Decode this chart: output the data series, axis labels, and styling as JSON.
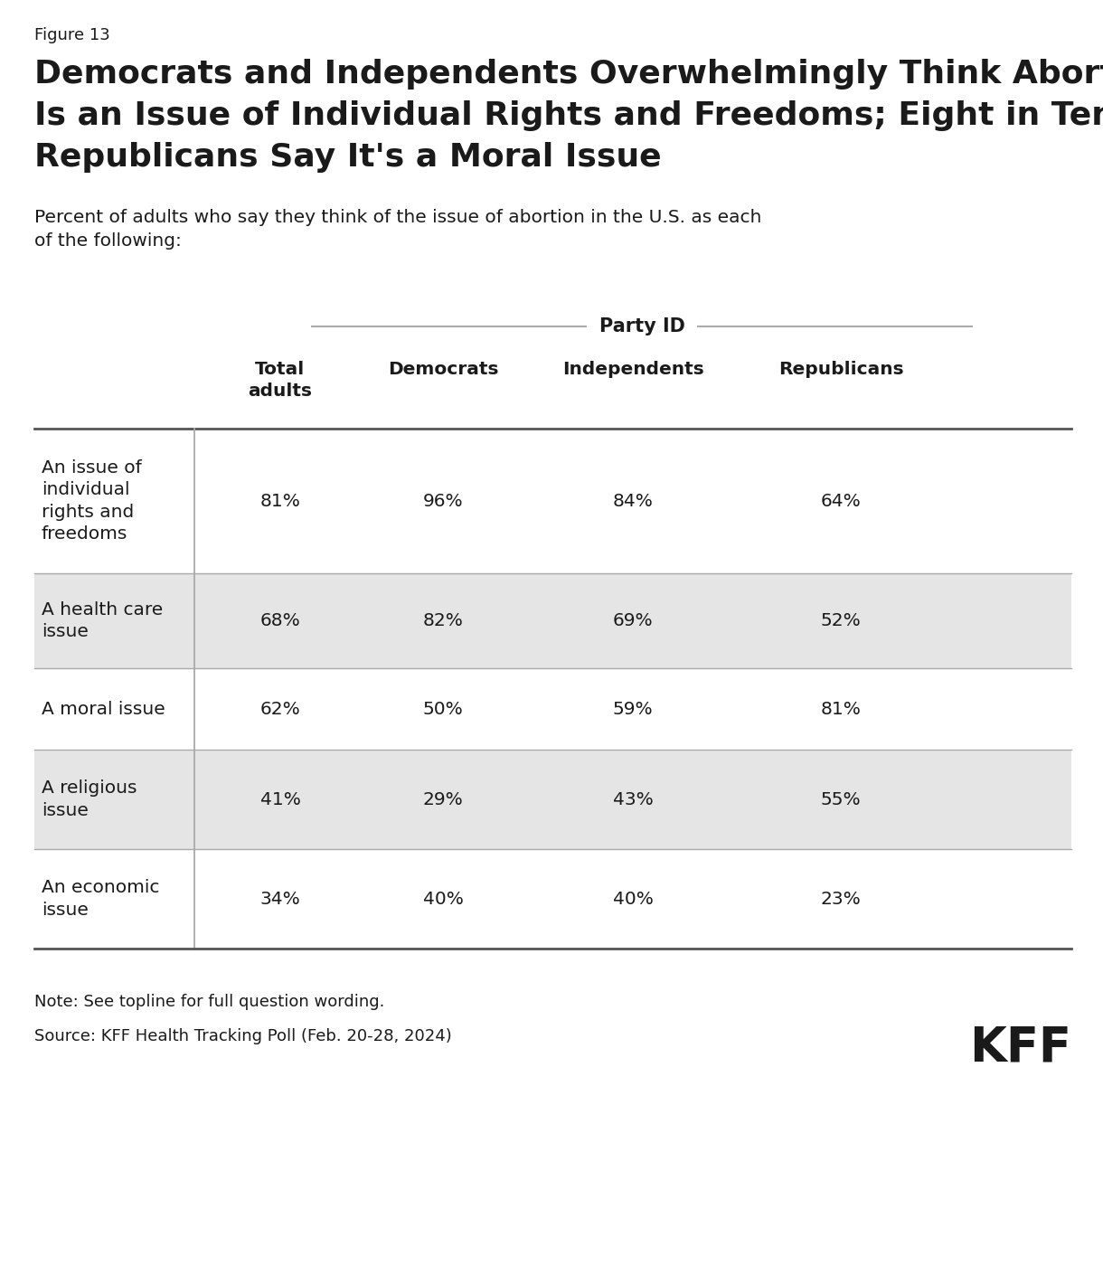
{
  "figure_label": "Figure 13",
  "title_line1": "Democrats and Independents Overwhelmingly Think Abortion",
  "title_line2": "Is an Issue of Individual Rights and Freedoms; Eight in Ten",
  "title_line3": "Republicans Say It's a Moral Issue",
  "subtitle": "Percent of adults who say they think of the issue of abortion in the U.S. as each\nof the following:",
  "party_id_label": "Party ID",
  "col_headers": [
    "Total\nadults",
    "Democrats",
    "Independents",
    "Republicans"
  ],
  "row_labels": [
    "An issue of\nindividual\nrights and\nfreedoms",
    "A health care\nissue",
    "A moral issue",
    "A religious\nissue",
    "An economic\nissue"
  ],
  "data": [
    [
      "81%",
      "96%",
      "84%",
      "64%"
    ],
    [
      "68%",
      "82%",
      "69%",
      "52%"
    ],
    [
      "62%",
      "50%",
      "59%",
      "81%"
    ],
    [
      "41%",
      "29%",
      "43%",
      "55%"
    ],
    [
      "34%",
      "40%",
      "40%",
      "23%"
    ]
  ],
  "shaded_rows": [
    1,
    3
  ],
  "note": "Note: See topline for full question wording.",
  "source": "Source: KFF Health Tracking Poll (Feb. 20-28, 2024)",
  "kff_label": "KFF",
  "bg_color": "#ffffff",
  "shaded_color": "#e5e5e5",
  "text_color": "#1a1a1a",
  "border_color": "#aaaaaa",
  "header_border_color": "#555555"
}
